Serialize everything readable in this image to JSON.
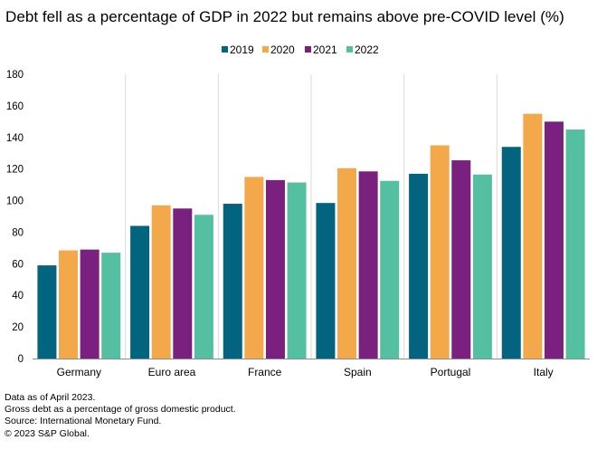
{
  "title": "Debt fell as a percentage of GDP in 2022 but remains above pre-COVID level (%)",
  "footnotes": [
    "Data as of April 2023.",
    "Gross debt as a percentage of gross domestic product.",
    "Source: International Monetary Fund.",
    "© 2023 S&P Global."
  ],
  "colors": {
    "2019": "#036480",
    "2020": "#F3A84A",
    "2021": "#7A2180",
    "2022": "#55BFA1",
    "grid": "#DADADA",
    "axis": "#8C8C8C"
  },
  "chart_data": {
    "type": "bar",
    "title": "Debt fell as a percentage of GDP in 2022 but remains above pre-COVID level (%)",
    "categories": [
      "Germany",
      "Euro area",
      "France",
      "Spain",
      "Portugal",
      "Italy"
    ],
    "series": [
      {
        "name": "2019",
        "values": [
          59,
          84,
          98,
          98.5,
          117,
          134
        ]
      },
      {
        "name": "2020",
        "values": [
          68.5,
          97,
          115,
          120.5,
          135,
          155
        ]
      },
      {
        "name": "2021",
        "values": [
          69,
          95,
          113,
          118.5,
          125.5,
          150
        ]
      },
      {
        "name": "2022",
        "values": [
          67,
          91,
          111.5,
          112.5,
          116.5,
          145
        ]
      }
    ],
    "ylim": [
      0,
      180
    ],
    "yticks": [
      0,
      20,
      40,
      60,
      80,
      100,
      120,
      140,
      160,
      180
    ],
    "xlabel": "",
    "ylabel": "",
    "legend": "top-center",
    "grid": "vertical category separators"
  }
}
